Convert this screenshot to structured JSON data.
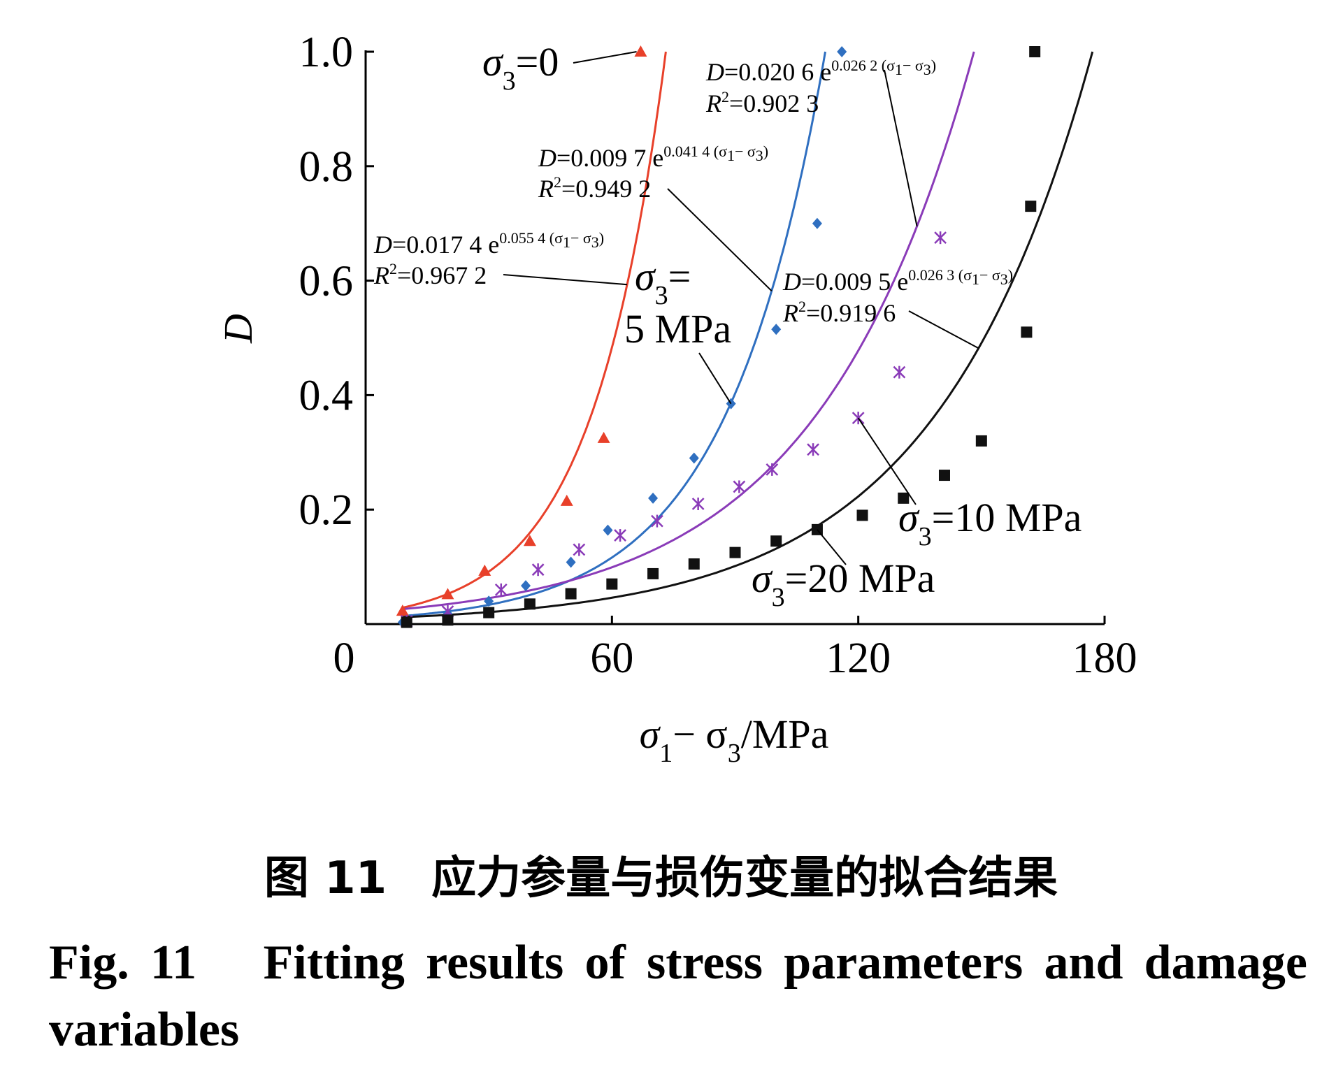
{
  "chart_data": {
    "type": "scatter",
    "xlabel_parts": [
      "σ",
      "1",
      "− σ",
      "3",
      "/MPa"
    ],
    "ylabel": "D",
    "x_origin_label": "0",
    "xlim": [
      0,
      180
    ],
    "ylim": [
      0,
      1.0
    ],
    "xticks": [
      60,
      120,
      180
    ],
    "yticks": [
      0.2,
      0.4,
      0.6,
      0.8,
      1.0
    ],
    "xtick_labels": [
      "60",
      "120",
      "180"
    ],
    "ytick_labels": [
      "0.2",
      "0.4",
      "0.6",
      "0.8",
      "1.0"
    ],
    "grid": false,
    "series": [
      {
        "label_parts": [
          "σ",
          "3",
          "=0"
        ],
        "color": "#e8402a",
        "marker": "triangle",
        "fit": {
          "a": 0.0174,
          "b": 0.0554
        },
        "equation": [
          "D",
          "=0.017 4 e",
          "0.055 4 (σ",
          "1",
          "− σ",
          "3",
          ")"
        ],
        "r2": [
          "R",
          "2",
          "=0.967 2"
        ],
        "points": [
          [
            9,
            0.023
          ],
          [
            20,
            0.052
          ],
          [
            29,
            0.093
          ],
          [
            40,
            0.145
          ],
          [
            49,
            0.215
          ],
          [
            58,
            0.325
          ],
          [
            67,
            1.0
          ]
        ]
      },
      {
        "label_parts": [
          "σ",
          "3",
          "=",
          "5 MPa"
        ],
        "color": "#2f6fc0",
        "marker": "diamond",
        "fit": {
          "a": 0.0097,
          "b": 0.0414
        },
        "equation": [
          "D",
          "=0.009 7 e",
          "0.041 4 (σ",
          "1",
          "− σ",
          "3",
          ")"
        ],
        "r2": [
          "R",
          "2",
          "=0.949 2"
        ],
        "points": [
          [
            9,
            0.003
          ],
          [
            20,
            0.018
          ],
          [
            30,
            0.04
          ],
          [
            39,
            0.067
          ],
          [
            50,
            0.108
          ],
          [
            59,
            0.164
          ],
          [
            70,
            0.22
          ],
          [
            80,
            0.29
          ],
          [
            89,
            0.385
          ],
          [
            100,
            0.515
          ],
          [
            110,
            0.7
          ],
          [
            116,
            1.0
          ]
        ]
      },
      {
        "label_parts": [
          "σ",
          "3",
          "=10 MPa"
        ],
        "color": "#8a3bb8",
        "marker": "asterisk",
        "fit": {
          "a": 0.0206,
          "b": 0.0262
        },
        "equation": [
          "D",
          "=0.020 6 e",
          "0.026 2 (σ",
          "1",
          "− σ",
          "3",
          ")"
        ],
        "r2": [
          "R",
          "2",
          "=0.902 3"
        ],
        "points": [
          [
            10,
            0.005
          ],
          [
            20,
            0.022
          ],
          [
            33,
            0.06
          ],
          [
            42,
            0.095
          ],
          [
            52,
            0.13
          ],
          [
            62,
            0.155
          ],
          [
            71,
            0.18
          ],
          [
            81,
            0.21
          ],
          [
            91,
            0.24
          ],
          [
            99,
            0.27
          ],
          [
            109,
            0.305
          ],
          [
            120,
            0.36
          ],
          [
            130,
            0.44
          ],
          [
            140,
            0.675
          ]
        ]
      },
      {
        "label_parts": [
          "σ",
          "3",
          "=20 MPa"
        ],
        "color": "#111111",
        "marker": "square",
        "fit": {
          "a": 0.0095,
          "b": 0.0263
        },
        "equation": [
          "D",
          "=0.009 5 e",
          "0.026 3 (σ",
          "1",
          "− σ",
          "3",
          ")"
        ],
        "r2": [
          "R",
          "2",
          "=0.919 6"
        ],
        "points": [
          [
            10,
            0.003
          ],
          [
            20,
            0.007
          ],
          [
            30,
            0.02
          ],
          [
            40,
            0.035
          ],
          [
            50,
            0.053
          ],
          [
            60,
            0.07
          ],
          [
            70,
            0.088
          ],
          [
            80,
            0.105
          ],
          [
            90,
            0.125
          ],
          [
            100,
            0.145
          ],
          [
            110,
            0.165
          ],
          [
            121,
            0.19
          ],
          [
            131,
            0.22
          ],
          [
            141,
            0.26
          ],
          [
            150,
            0.32
          ],
          [
            161,
            0.51
          ],
          [
            162,
            0.73
          ],
          [
            163,
            1.0
          ]
        ]
      }
    ]
  },
  "caption": {
    "zh": "图 11　应力参量与损伤变量的拟合结果",
    "en": "Fig. 11　Fitting results of stress parameters and damage variables"
  }
}
